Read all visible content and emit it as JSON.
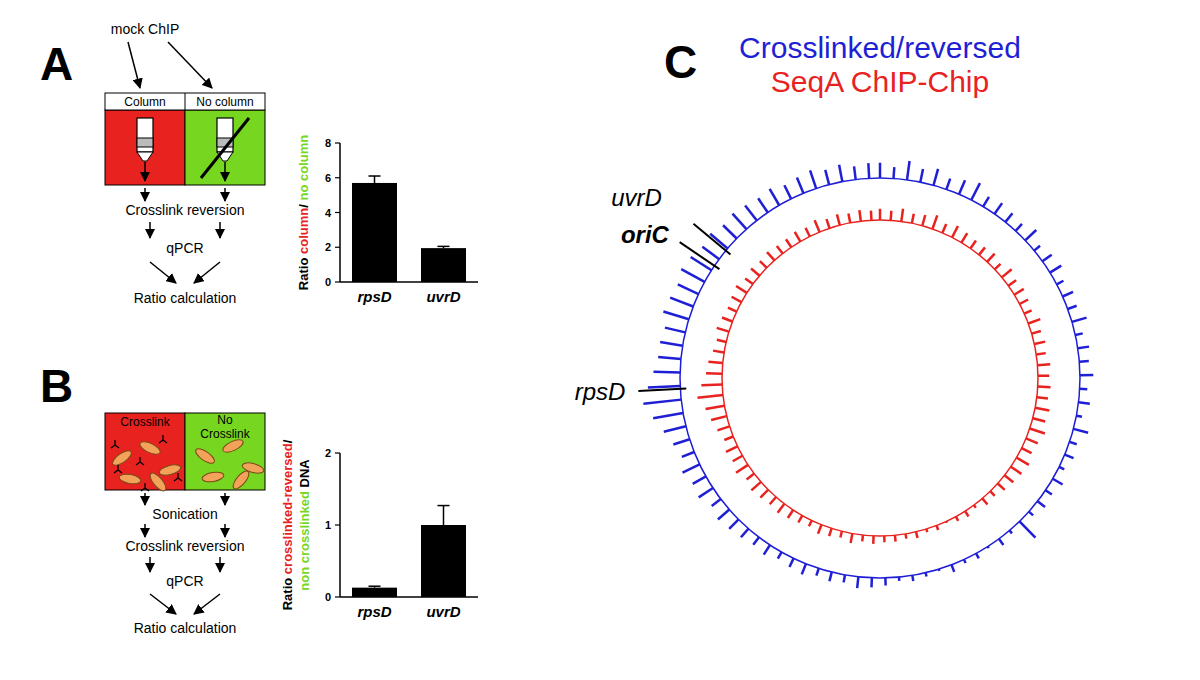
{
  "panel_labels": [
    "A",
    "B",
    "C"
  ],
  "diagrams": [
    {
      "top_label": "mock ChIP",
      "columns": [
        [
          "Column"
        ],
        [
          "No column"
        ]
      ],
      "colors": [
        "#e8231f",
        "#77d61f"
      ],
      "steps": [
        "Crosslink reversion",
        "qPCR",
        "Ratio calculation"
      ]
    },
    {
      "columns": [
        [
          "Crosslink"
        ],
        [
          "No",
          "Crosslink"
        ]
      ],
      "colors": [
        "#e8231f",
        "#77d61f"
      ],
      "steps": [
        "Sonication",
        "Crosslink reversion",
        "qPCR",
        "Ratio calculation"
      ]
    }
  ],
  "chart_data": [
    {
      "type": "bar",
      "categories": [
        "rpsD",
        "uvrD"
      ],
      "values": [
        5.7,
        1.95
      ],
      "errors": [
        0.4,
        0.1
      ],
      "color": "#000000",
      "ylim": [
        0,
        8
      ],
      "yticks": [
        0,
        2,
        4,
        6,
        8
      ],
      "ylabel": [
        [
          {
            "text": "Ratio ",
            "color": "#000000"
          },
          {
            "text": "column",
            "color": "#e8231f"
          },
          {
            "text": "/ ",
            "color": "#000000"
          },
          {
            "text": "no column",
            "color": "#77d61f"
          }
        ]
      ]
    },
    {
      "type": "bar",
      "categories": [
        "rpsD",
        "uvrD"
      ],
      "values": [
        0.13,
        1.0
      ],
      "errors": [
        0.02,
        0.27
      ],
      "color": "#000000",
      "ylim": [
        0,
        2
      ],
      "yticks": [
        0,
        1,
        2
      ],
      "ylabel": [
        [
          {
            "text": "Ratio ",
            "color": "#000000"
          },
          {
            "text": "crosslinked-reversed",
            "color": "#e8231f"
          },
          {
            "text": "/",
            "color": "#000000"
          }
        ],
        [
          {
            "text": "non crosslinked",
            "color": "#77d61f"
          },
          {
            "text": " DNA",
            "color": "#000000"
          }
        ]
      ]
    },
    {
      "type": "radial_bar",
      "legend": "top",
      "tick_labels": false,
      "xlim": [
        0,
        4.64
      ],
      "ylim": [
        0,
        1
      ],
      "x": [
        0,
        0.05,
        0.1,
        0.15,
        0.2,
        0.25,
        0.3,
        0.35,
        0.4,
        0.45,
        0.5,
        0.55,
        0.6,
        0.65,
        0.7,
        0.75,
        0.8,
        0.85,
        0.9,
        0.95,
        1,
        1.05,
        1.1,
        1.15,
        1.2,
        1.25,
        1.3,
        1.35,
        1.4,
        1.45,
        1.5,
        1.55,
        1.6,
        1.65,
        1.7,
        1.75,
        1.8,
        1.85,
        1.9,
        1.95,
        2,
        2.05,
        2.1,
        2.15,
        2.2,
        2.25,
        2.3,
        2.35,
        2.4,
        2.45,
        2.5,
        2.55,
        2.6,
        2.65,
        2.7,
        2.75,
        2.8,
        2.85,
        2.9,
        2.95,
        3,
        3.05,
        3.1,
        3.15,
        3.2,
        3.25,
        3.3,
        3.35,
        3.4,
        3.45,
        3.5,
        3.55,
        3.6,
        3.65,
        3.7,
        3.75,
        3.8,
        3.85,
        3.9,
        3.95,
        4,
        4.05,
        4.1,
        4.15,
        4.2,
        4.25,
        4.3,
        4.35,
        4.4,
        4.45,
        4.5,
        4.55,
        4.6
      ],
      "series": [
        {
          "name": "Crosslinked/reversed",
          "color": "#1f1fd6",
          "values": [
            0.4,
            0.3,
            0.5,
            0.35,
            0.45,
            0.3,
            0.4,
            0.5,
            0.3,
            0.35,
            0.3,
            0.25,
            0.4,
            0.2,
            0.3,
            0.35,
            0.2,
            0.3,
            0.25,
            0.4,
            0.2,
            0.3,
            0.25,
            0.35,
            0.2,
            0.3,
            0.15,
            0.4,
            0.2,
            0.25,
            0.15,
            0.3,
            0.2,
            0.25,
            0.15,
            0.6,
            0.1,
            0.2,
            0.05,
            0.15,
            0.1,
            0.2,
            0.05,
            0.1,
            0.15,
            0.1,
            0.2,
            0.25,
            0.3,
            0.2,
            0.25,
            0.2,
            0.3,
            0.25,
            0.2,
            0.3,
            0.25,
            0.3,
            0.35,
            0.4,
            0.3,
            0.45,
            0.4,
            0.5,
            0.35,
            0.45,
            0.6,
            0.8,
            1.0,
            0.85,
            0.7,
            0.6,
            0.6,
            0.55,
            0.7,
            0.65,
            0.6,
            0.7,
            0.65,
            0.55,
            0.6,
            0.5,
            0.55,
            0.5,
            0.45,
            0.5,
            0.4,
            0.45,
            0.5,
            0.4,
            0.45,
            0.35,
            0.4
          ]
        },
        {
          "name": "SeqA ChIP-Chip",
          "color": "#e8231f",
          "values": [
            0.35,
            0.3,
            0.4,
            0.3,
            0.35,
            0.45,
            0.3,
            0.4,
            0.35,
            0.3,
            0.3,
            0.35,
            0.25,
            0.4,
            0.3,
            0.35,
            0.3,
            0.25,
            0.4,
            0.3,
            0.35,
            0.3,
            0.4,
            0.35,
            0.4,
            0.35,
            0.45,
            0.4,
            0.5,
            0.4,
            0.35,
            0.45,
            0.4,
            0.35,
            0.3,
            0.2,
            0.25,
            0.1,
            0.2,
            0.15,
            0.05,
            0.15,
            0.1,
            0.2,
            0.15,
            0.2,
            0.2,
            0.25,
            0.2,
            0.3,
            0.2,
            0.25,
            0.3,
            0.2,
            0.25,
            0.3,
            0.35,
            0.3,
            0.35,
            0.4,
            0.3,
            0.45,
            0.35,
            0.4,
            0.3,
            0.4,
            0.5,
            0.6,
            0.8,
            0.65,
            0.5,
            0.45,
            0.35,
            0.3,
            0.4,
            0.35,
            0.3,
            0.35,
            0.4,
            0.3,
            0.35,
            0.3,
            0.35,
            0.3,
            0.3,
            0.35,
            0.3,
            0.4,
            0.3,
            0.35,
            0.3,
            0.35,
            0.3
          ]
        }
      ],
      "annotations": [
        {
          "text": "oriC",
          "x": 3.92
        },
        {
          "text": "uvrD",
          "x": 3.99
        },
        {
          "text": "rpsD",
          "x": 3.44
        }
      ]
    }
  ]
}
